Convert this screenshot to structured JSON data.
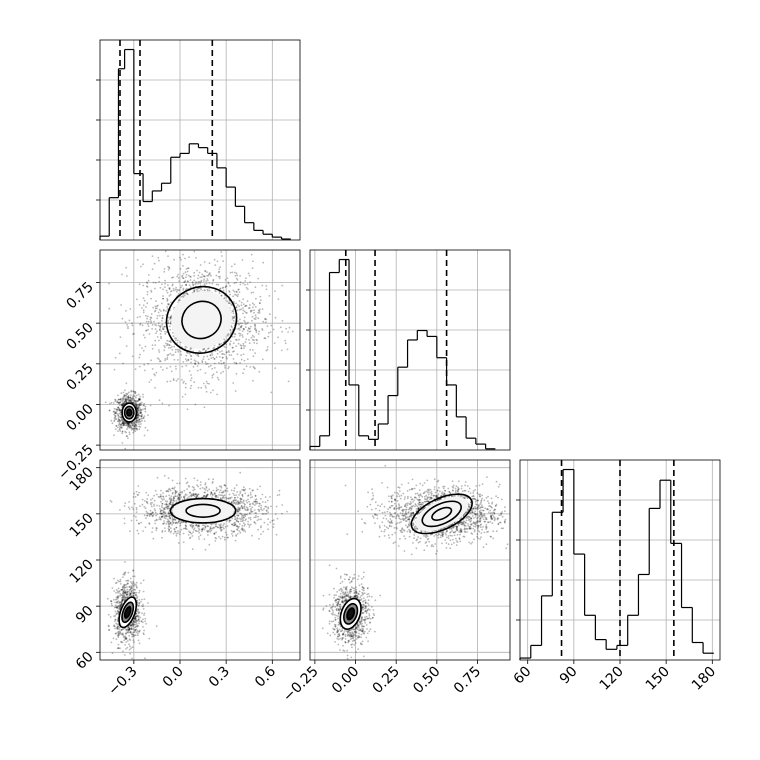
{
  "chart_data": {
    "type": "corner",
    "grid": true,
    "axis_ticks": {
      "x0": {
        "range": [
          -0.52,
          0.78
        ],
        "ticks": [
          -0.3,
          0.0,
          0.3,
          0.6
        ],
        "labels": [
          "−0.3",
          "0.0",
          "0.3",
          "0.6"
        ]
      },
      "x1": {
        "range": [
          -0.28,
          0.95
        ],
        "ticks": [
          -0.25,
          0.0,
          0.25,
          0.5,
          0.75
        ],
        "labels": [
          "−0.25",
          "0.00",
          "0.25",
          "0.50",
          "0.75"
        ]
      },
      "x2": {
        "range": [
          55,
          185
        ],
        "ticks": [
          60,
          90,
          120,
          150,
          180
        ],
        "labels": [
          "60",
          "90",
          "120",
          "150",
          "180"
        ]
      }
    },
    "histograms": [
      {
        "param": "x0",
        "bins": [
          -0.52,
          -0.46,
          -0.4,
          -0.36,
          -0.3,
          -0.24,
          -0.18,
          -0.12,
          -0.06,
          0.0,
          0.06,
          0.12,
          0.18,
          0.24,
          0.3,
          0.36,
          0.42,
          0.48,
          0.54,
          0.6,
          0.66,
          0.72
        ],
        "counts": [
          4,
          44,
          178,
          198,
          69,
          40,
          51,
          59,
          86,
          90,
          100,
          96,
          90,
          75,
          55,
          35,
          18,
          10,
          6,
          3,
          1
        ],
        "quantiles": [
          -0.39,
          -0.26,
          0.21
        ]
      },
      {
        "param": "x1",
        "bins": [
          -0.28,
          -0.22,
          -0.16,
          -0.1,
          -0.04,
          0.02,
          0.08,
          0.14,
          0.2,
          0.26,
          0.32,
          0.38,
          0.44,
          0.5,
          0.56,
          0.62,
          0.68,
          0.74,
          0.8,
          0.86
        ],
        "counts": [
          3,
          12,
          150,
          161,
          55,
          12,
          9,
          22,
          46,
          70,
          93,
          101,
          96,
          78,
          55,
          28,
          10,
          5,
          1
        ],
        "quantiles": [
          -0.06,
          0.12,
          0.56
        ]
      },
      {
        "param": "x2",
        "bins": [
          55,
          62,
          69,
          76,
          83,
          90,
          97,
          104,
          111,
          118,
          125,
          132,
          139,
          146,
          153,
          160,
          167,
          174,
          181
        ],
        "counts": [
          2,
          15,
          66,
          152,
          196,
          109,
          46,
          21,
          11,
          15,
          46,
          88,
          156,
          185,
          120,
          54,
          18,
          7
        ],
        "quantiles": [
          82,
          120,
          155
        ]
      }
    ],
    "scatter_panels": [
      {
        "x_param": "x0",
        "y_param": "x1",
        "clusters": [
          {
            "center": [
              -0.33,
              -0.05
            ],
            "sd": [
              0.04,
              0.05
            ],
            "contour_fractions": [
              0.34,
              0.66,
              1.0
            ]
          },
          {
            "center": [
              0.14,
              0.52
            ],
            "sd": [
              0.16,
              0.14
            ],
            "contour_fractions": [
              0.7,
              1.25
            ]
          }
        ]
      },
      {
        "x_param": "x0",
        "y_param": "x2",
        "clusters": [
          {
            "center": [
              -0.34,
              86
            ],
            "sd": [
              0.04,
              9
            ],
            "contour_fractions": [
              0.34,
              0.66,
              1.0
            ]
          },
          {
            "center": [
              0.15,
              152
            ],
            "sd": [
              0.16,
              6
            ],
            "contour_fractions": [
              0.6,
              1.15
            ]
          }
        ]
      },
      {
        "x_param": "x1",
        "y_param": "x2",
        "clusters": [
          {
            "center": [
              -0.03,
              85
            ],
            "sd": [
              0.05,
              9
            ],
            "contour_fractions": [
              0.34,
              0.66,
              1.0
            ]
          },
          {
            "center": [
              0.53,
              150
            ],
            "sd": [
              0.14,
              7
            ],
            "contour_fractions": [
              0.4,
              0.8,
              1.25
            ]
          }
        ]
      }
    ]
  }
}
